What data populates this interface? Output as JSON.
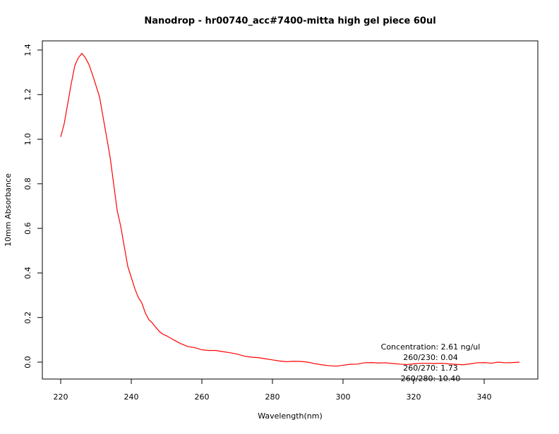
{
  "chart_data": {
    "type": "line",
    "title": "Nanodrop - hr00740_acc#7400-mitta high gel piece 60ul",
    "x_label": "Wavelength(nm)",
    "y_label": "10mm Absorbance",
    "color": "#ff0000",
    "x": [
      220,
      221,
      222,
      223,
      224,
      225,
      226,
      227,
      228,
      229,
      230,
      231,
      232,
      233,
      234,
      235,
      236,
      237,
      238,
      239,
      240,
      241,
      242,
      243,
      244,
      245,
      246,
      247,
      248,
      249,
      250,
      252,
      254,
      256,
      258,
      260,
      262,
      264,
      266,
      268,
      270,
      272,
      274,
      276,
      278,
      280,
      282,
      284,
      286,
      288,
      290,
      292,
      294,
      296,
      298,
      300,
      302,
      304,
      306,
      308,
      310,
      312,
      314,
      316,
      318,
      320,
      322,
      324,
      326,
      328,
      330,
      332,
      334,
      336,
      338,
      340,
      342,
      344,
      346,
      348,
      350
    ],
    "values": [
      1.01,
      1.07,
      1.16,
      1.25,
      1.33,
      1.365,
      1.385,
      1.365,
      1.335,
      1.29,
      1.24,
      1.19,
      1.1,
      1.01,
      0.92,
      0.8,
      0.68,
      0.61,
      0.52,
      0.43,
      0.38,
      0.33,
      0.29,
      0.265,
      0.22,
      0.19,
      0.175,
      0.155,
      0.137,
      0.125,
      0.118,
      0.1,
      0.083,
      0.07,
      0.065,
      0.055,
      0.052,
      0.052,
      0.047,
      0.042,
      0.036,
      0.027,
      0.022,
      0.02,
      0.015,
      0.01,
      0.005,
      0.002,
      0.004,
      0.003,
      0.0,
      -0.007,
      -0.012,
      -0.016,
      -0.018,
      -0.014,
      -0.01,
      -0.009,
      -0.003,
      -0.002,
      -0.004,
      -0.003,
      -0.006,
      -0.009,
      -0.011,
      -0.008,
      -0.005,
      -0.005,
      -0.006,
      -0.005,
      -0.008,
      -0.01,
      -0.012,
      -0.008,
      -0.003,
      -0.002,
      -0.005,
      0.0,
      -0.003,
      -0.002,
      0.0
    ],
    "xlim": [
      214.8,
      355.2
    ],
    "ylim": [
      -0.0759,
      1.441
    ],
    "xticks": [
      220,
      240,
      260,
      280,
      300,
      320,
      340
    ],
    "yticks": [
      {
        "value": 0,
        "label": "0.0"
      },
      0.2,
      0.4,
      0.6,
      0.8,
      {
        "value": 1,
        "label": "1.0"
      },
      1.2,
      1.4
    ],
    "annotations": [
      "Concentration: 2.61 ng/ul",
      "260/230: 0.04",
      "260/270: 1.73",
      "260/280: 10.40"
    ]
  }
}
